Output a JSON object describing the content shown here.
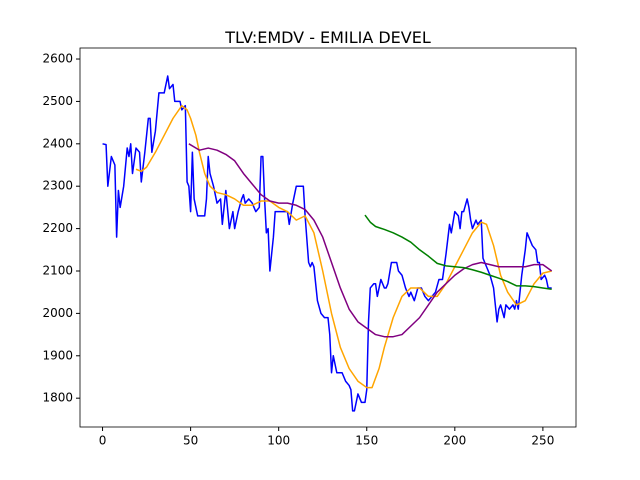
{
  "chart_data": {
    "type": "line",
    "title": "TLV:EMDV - EMILIA DEVEL",
    "xlim": [
      -12.8,
      268.8
    ],
    "xticks": [
      0,
      50,
      100,
      150,
      200,
      250
    ],
    "ylim": [
      1732,
      2626
    ],
    "yticks": [
      1800,
      1900,
      2000,
      2100,
      2200,
      2300,
      2400,
      2500,
      2600
    ],
    "series": [
      {
        "color": "#0000ff",
        "x": [
          0,
          2,
          3,
          5,
          7,
          8,
          9,
          10,
          12,
          14,
          15,
          16,
          17,
          19,
          21,
          22,
          24,
          26,
          27,
          28,
          30,
          32,
          35,
          37,
          38,
          40,
          41,
          44,
          45,
          47,
          48,
          49,
          50,
          51,
          52,
          54,
          58,
          59,
          60,
          61,
          63,
          65,
          67,
          68,
          70,
          72,
          74,
          75,
          77,
          79,
          80,
          81,
          83,
          85,
          87,
          89,
          90,
          91,
          92,
          93,
          94,
          95,
          97,
          98,
          103,
          105,
          106,
          108,
          110,
          112,
          114,
          115,
          117,
          118,
          119,
          120,
          122,
          124,
          126,
          128,
          129,
          130,
          131,
          133,
          136,
          138,
          140,
          141,
          142,
          143,
          145,
          147,
          149,
          150,
          151,
          152,
          154,
          155,
          156,
          158,
          160,
          161,
          162,
          164,
          167,
          168,
          170,
          172,
          174,
          175,
          177,
          179,
          181,
          183,
          185,
          187,
          189,
          191,
          193,
          195,
          197,
          198,
          200,
          202,
          203,
          204,
          205,
          207,
          208,
          209,
          210,
          212,
          213,
          215,
          216,
          218,
          220,
          222,
          223,
          224,
          225,
          226,
          228,
          229,
          231,
          233,
          234,
          235,
          236,
          238,
          240,
          241,
          242,
          244,
          246,
          247,
          248,
          249,
          251,
          252,
          253,
          254,
          255
        ],
        "values": [
          2400,
          2398,
          2300,
          2370,
          2350,
          2180,
          2290,
          2250,
          2300,
          2390,
          2370,
          2400,
          2330,
          2390,
          2380,
          2310,
          2380,
          2460,
          2460,
          2380,
          2430,
          2520,
          2520,
          2560,
          2530,
          2540,
          2500,
          2500,
          2480,
          2490,
          2310,
          2300,
          2240,
          2380,
          2270,
          2230,
          2230,
          2270,
          2370,
          2330,
          2300,
          2260,
          2270,
          2210,
          2290,
          2200,
          2240,
          2200,
          2240,
          2270,
          2280,
          2260,
          2270,
          2260,
          2240,
          2250,
          2370,
          2370,
          2270,
          2190,
          2200,
          2100,
          2180,
          2240,
          2240,
          2240,
          2210,
          2260,
          2300,
          2300,
          2300,
          2230,
          2120,
          2110,
          2120,
          2110,
          2030,
          2000,
          1990,
          1990,
          1950,
          1860,
          1900,
          1860,
          1860,
          1840,
          1830,
          1820,
          1770,
          1770,
          1810,
          1790,
          1790,
          1820,
          1980,
          2060,
          2070,
          2070,
          2040,
          2080,
          2060,
          2060,
          2070,
          2120,
          2120,
          2100,
          2090,
          2060,
          2040,
          2050,
          2030,
          2060,
          2060,
          2040,
          2030,
          2040,
          2050,
          2080,
          2080,
          2140,
          2210,
          2190,
          2240,
          2230,
          2200,
          2240,
          2240,
          2270,
          2250,
          2220,
          2200,
          2220,
          2210,
          2220,
          2130,
          2110,
          2090,
          2060,
          2020,
          1980,
          2010,
          2020,
          1990,
          2020,
          2010,
          2020,
          2010,
          2030,
          2010,
          2090,
          2150,
          2190,
          2180,
          2160,
          2150,
          2120,
          2120,
          2080,
          2090,
          2080,
          2060,
          2060,
          2060
        ]
      },
      {
        "color": "#ffa500",
        "x": [
          19,
          22,
          25,
          30,
          35,
          40,
          45,
          48,
          50,
          53,
          55,
          58,
          61,
          65,
          70,
          75,
          80,
          85,
          90,
          95,
          100,
          105,
          110,
          115,
          120,
          125,
          130,
          135,
          140,
          145,
          150,
          153,
          157,
          160,
          165,
          170,
          175,
          180,
          185,
          190,
          195,
          200,
          205,
          210,
          215,
          218,
          222,
          226,
          230,
          235,
          240,
          245,
          250,
          255
        ],
        "values": [
          2340,
          2335,
          2345,
          2380,
          2420,
          2460,
          2490,
          2480,
          2460,
          2420,
          2380,
          2330,
          2300,
          2285,
          2280,
          2270,
          2255,
          2255,
          2265,
          2265,
          2250,
          2240,
          2220,
          2230,
          2190,
          2100,
          2000,
          1920,
          1870,
          1840,
          1825,
          1825,
          1870,
          1920,
          1990,
          2040,
          2060,
          2060,
          2040,
          2040,
          2070,
          2110,
          2150,
          2190,
          2215,
          2210,
          2160,
          2090,
          2050,
          2020,
          2030,
          2070,
          2095,
          2100
        ]
      },
      {
        "color": "#800080",
        "x": [
          49,
          55,
          60,
          65,
          70,
          75,
          80,
          85,
          90,
          95,
          100,
          105,
          110,
          115,
          120,
          125,
          130,
          135,
          140,
          145,
          150,
          155,
          160,
          165,
          170,
          175,
          180,
          185,
          190,
          195,
          200,
          205,
          210,
          215,
          220,
          225,
          230,
          235,
          240,
          245,
          250,
          255
        ],
        "values": [
          2400,
          2385,
          2390,
          2385,
          2375,
          2360,
          2330,
          2305,
          2280,
          2265,
          2260,
          2260,
          2255,
          2245,
          2220,
          2180,
          2120,
          2060,
          2010,
          1980,
          1965,
          1950,
          1945,
          1945,
          1950,
          1970,
          1990,
          2020,
          2050,
          2070,
          2090,
          2105,
          2115,
          2120,
          2115,
          2110,
          2110,
          2110,
          2110,
          2115,
          2115,
          2100
        ]
      },
      {
        "color": "#008000",
        "x": [
          149,
          152,
          155,
          160,
          165,
          170,
          175,
          180,
          185,
          190,
          195,
          200,
          205,
          210,
          215,
          220,
          225,
          230,
          235,
          240,
          245,
          250,
          255
        ],
        "values": [
          2232,
          2215,
          2205,
          2198,
          2190,
          2180,
          2168,
          2150,
          2135,
          2118,
          2112,
          2110,
          2108,
          2103,
          2097,
          2090,
          2083,
          2075,
          2065,
          2065,
          2063,
          2060,
          2057
        ]
      }
    ]
  }
}
